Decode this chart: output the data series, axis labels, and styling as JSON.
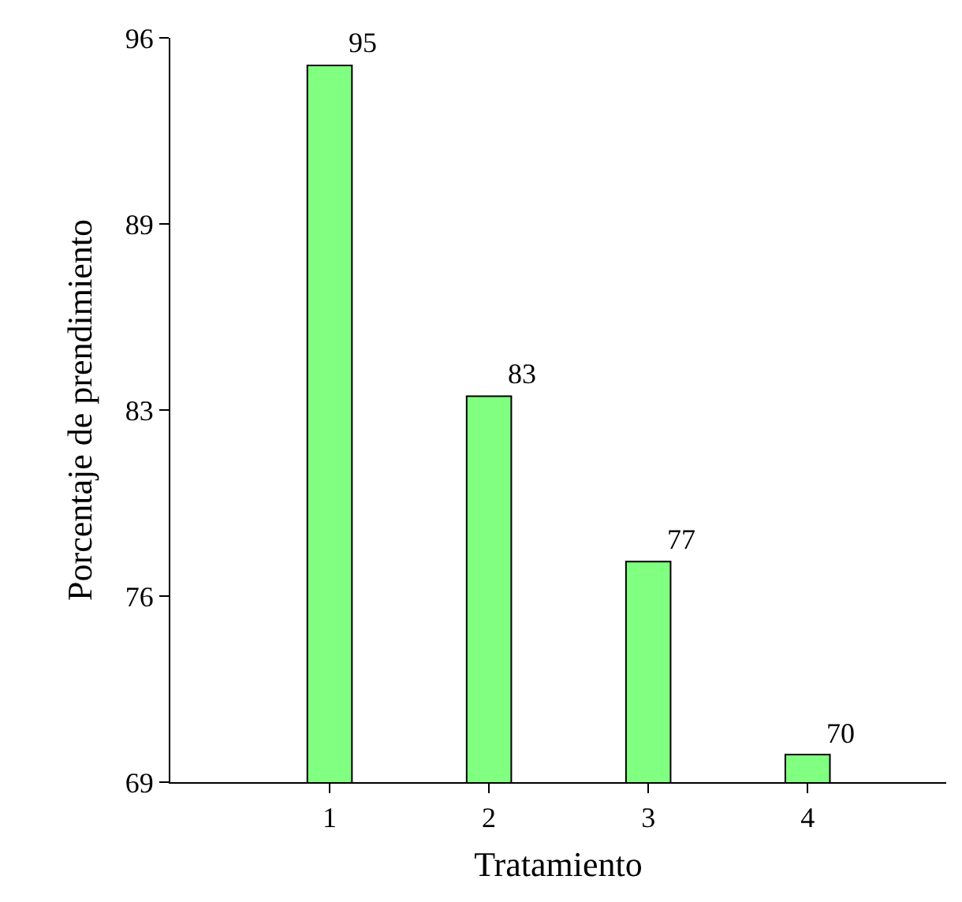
{
  "chart_data": {
    "type": "bar",
    "xlabel": "Tratamiento",
    "ylabel": "Porcentaje de prendimiento",
    "categories": [
      "1",
      "2",
      "3",
      "4"
    ],
    "values": [
      95,
      83,
      77,
      70
    ],
    "color": "#80ff80",
    "ylim": [
      69,
      96
    ],
    "yticks": [
      69,
      {
        "value": 75.75,
        "label": "76"
      },
      {
        "value": 82.5,
        "label": "83"
      },
      {
        "value": 89.25,
        "label": "89"
      },
      96
    ],
    "grid": false,
    "data_labels": true
  }
}
